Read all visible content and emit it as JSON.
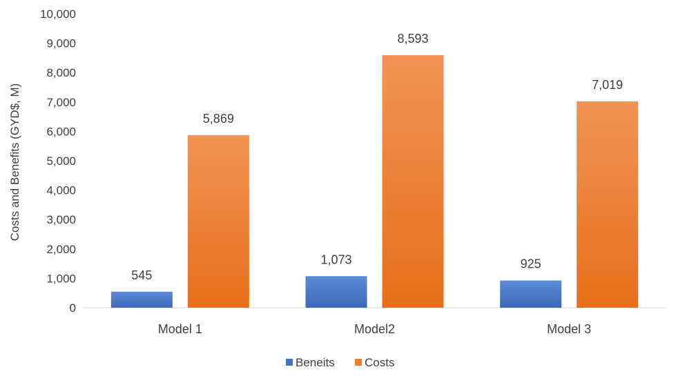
{
  "chart_data": {
    "type": "bar",
    "categories": [
      "Model 1",
      "Model2",
      "Model 3"
    ],
    "series": [
      {
        "name": "Beneits",
        "values": [
          545,
          1073,
          925
        ],
        "labels": [
          "545",
          "1,073",
          "925"
        ],
        "color": "#4472C4"
      },
      {
        "name": "Costs",
        "values": [
          5869,
          8593,
          7019
        ],
        "labels": [
          "5,869",
          "8,593",
          "7,019"
        ],
        "color": "#ED7D31"
      }
    ],
    "title": "",
    "xlabel": "",
    "ylabel": "Costs and Benefits (GYD$, M)",
    "ylim": [
      0,
      10000
    ],
    "yticks": [
      0,
      1000,
      2000,
      3000,
      4000,
      5000,
      6000,
      7000,
      8000,
      9000,
      10000
    ],
    "ytick_labels": [
      "0",
      "1,000",
      "2,000",
      "3,000",
      "4,000",
      "5,000",
      "6,000",
      "7,000",
      "8,000",
      "9,000",
      "10,000"
    ],
    "grid": false,
    "legend": "bottom"
  }
}
